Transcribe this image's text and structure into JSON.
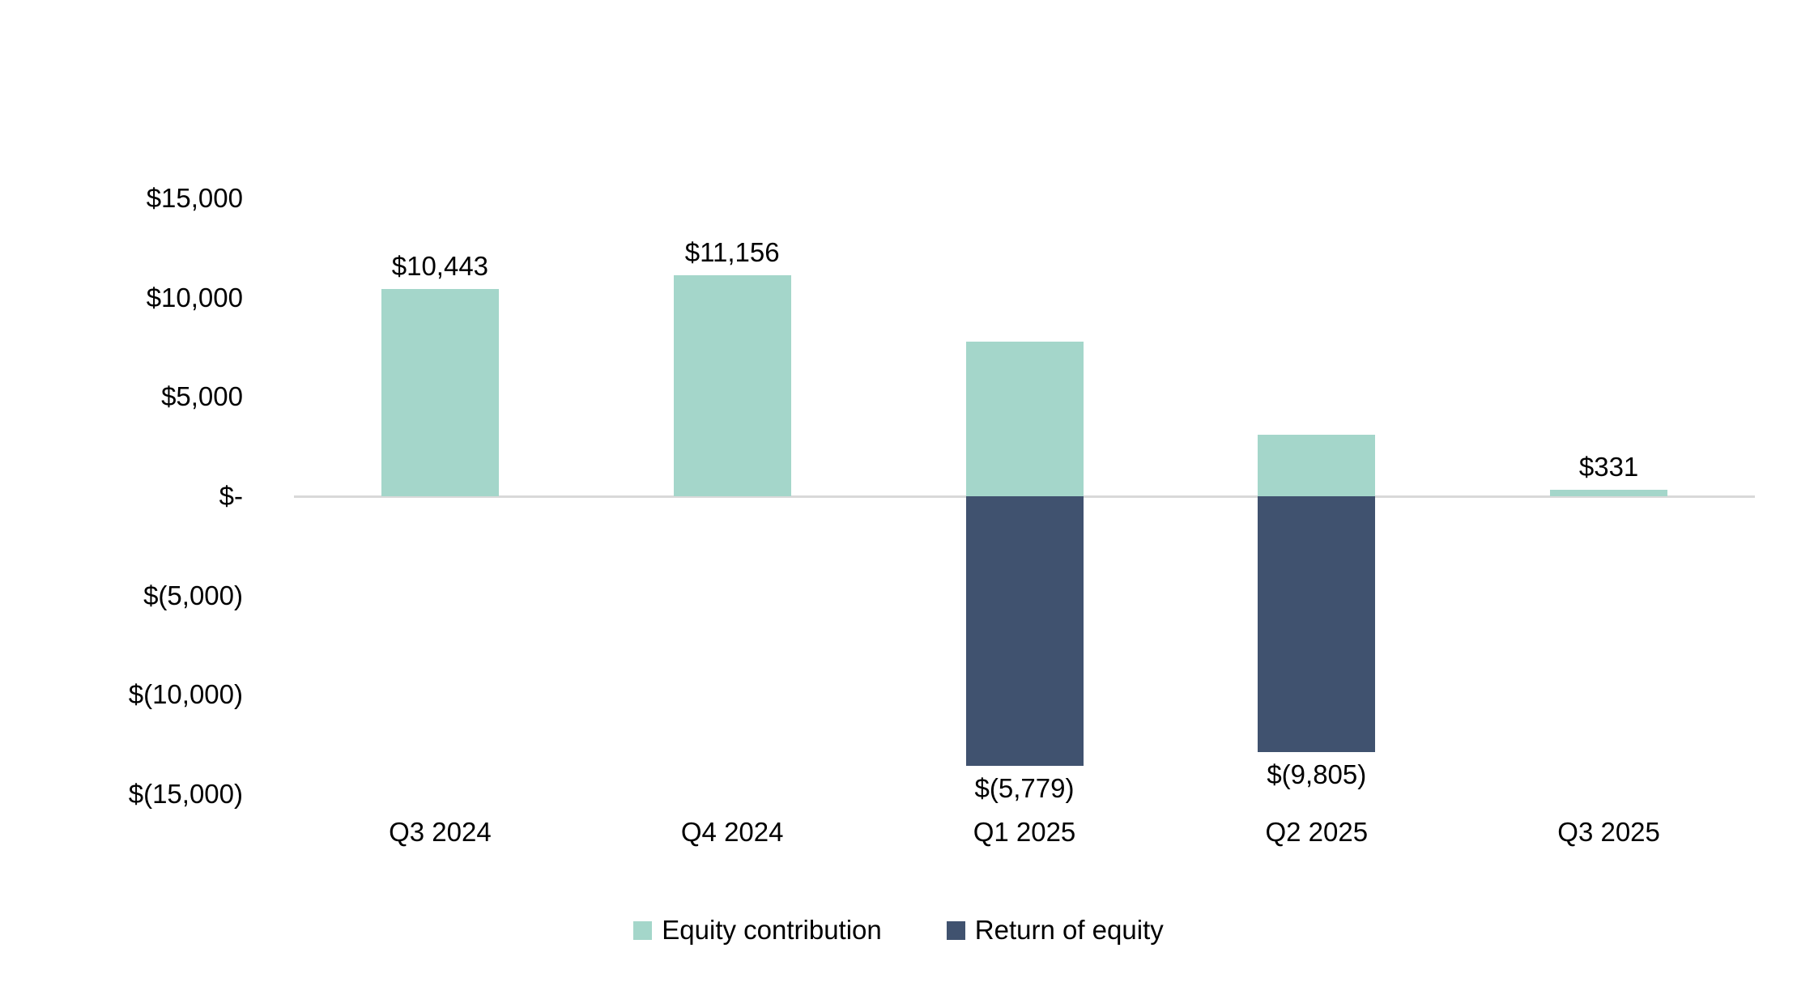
{
  "chart_data": {
    "type": "bar",
    "variant": "stacked-column",
    "title": "",
    "categories": [
      "Q3 2024",
      "Q4 2024",
      "Q1 2025",
      "Q2 2025",
      "Q3 2025"
    ],
    "series": [
      {
        "name": "Equity contribution",
        "color": "#a4d6ca",
        "values": [
          10443,
          11156,
          7800,
          3100,
          331
        ]
      },
      {
        "name": "Return of equity",
        "color": "#40526f",
        "values": [
          0,
          0,
          -13579,
          -12905,
          0
        ]
      }
    ],
    "data_labels": [
      {
        "text": "$10,443",
        "placement": "above"
      },
      {
        "text": "$11,156",
        "placement": "above"
      },
      {
        "text": "$(5,779)",
        "placement": "below"
      },
      {
        "text": "$(9,805)",
        "placement": "below"
      },
      {
        "text": "$331",
        "placement": "above"
      }
    ],
    "y_axis": {
      "min": -15000,
      "max": 15000,
      "step": 5000,
      "ticks": [
        {
          "value": 15000,
          "label": "$15,000"
        },
        {
          "value": 10000,
          "label": "$10,000"
        },
        {
          "value": 5000,
          "label": "$5,000"
        },
        {
          "value": 0,
          "label": "$-"
        },
        {
          "value": -5000,
          "label": "$(5,000)"
        },
        {
          "value": -10000,
          "label": "$(10,000)"
        },
        {
          "value": -15000,
          "label": "$(15,000)"
        }
      ]
    },
    "legend": {
      "position": "bottom",
      "items": [
        {
          "label": "Equity contribution",
          "color": "#a4d6ca"
        },
        {
          "label": "Return of equity",
          "color": "#40526f"
        }
      ]
    },
    "grid": false,
    "axis_line_color": "#d9d9d9",
    "text_color": "#000000",
    "background_color": "#ffffff"
  }
}
